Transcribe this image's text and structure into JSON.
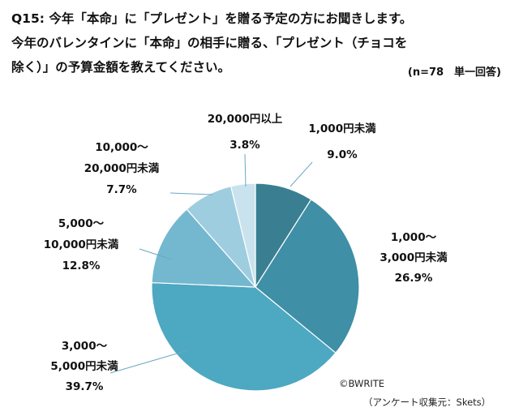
{
  "title": {
    "line1": "Q15: 今年「本命」に「プレゼント」を贈る予定の方にお聞きします。",
    "line2": "今年のバレンタインに「本命」の相手に贈る、「プレゼント（チョコを",
    "line3": "除く）」の予算金額を教えてください。"
  },
  "note": "(n=78　単一回答)",
  "copyright": "©BWRITE",
  "source": "（アンケート収集元：Skets）",
  "chart_data": {
    "type": "pie",
    "start": "12 o'clock, clockwise",
    "slices": [
      {
        "label_lines": [
          "1,000円未満"
        ],
        "value": 9.0,
        "value_label": "9.0%",
        "color": "#3a7f91"
      },
      {
        "label_lines": [
          "1,000～",
          "3,000円未満"
        ],
        "value": 26.9,
        "value_label": "26.9%",
        "color": "#3f8fa6"
      },
      {
        "label_lines": [
          "3,000～",
          "5,000円未満"
        ],
        "value": 39.7,
        "value_label": "39.7%",
        "color": "#4da8c1"
      },
      {
        "label_lines": [
          "5,000～",
          "10,000円未満"
        ],
        "value": 12.8,
        "value_label": "12.8%",
        "color": "#74b8cf"
      },
      {
        "label_lines": [
          "10,000～",
          "20,000円未満"
        ],
        "value": 7.7,
        "value_label": "7.7%",
        "color": "#9fcde0"
      },
      {
        "label_lines": [
          "20,000円以上"
        ],
        "value": 3.8,
        "value_label": "3.8%",
        "color": "#c9e3ee"
      }
    ]
  }
}
